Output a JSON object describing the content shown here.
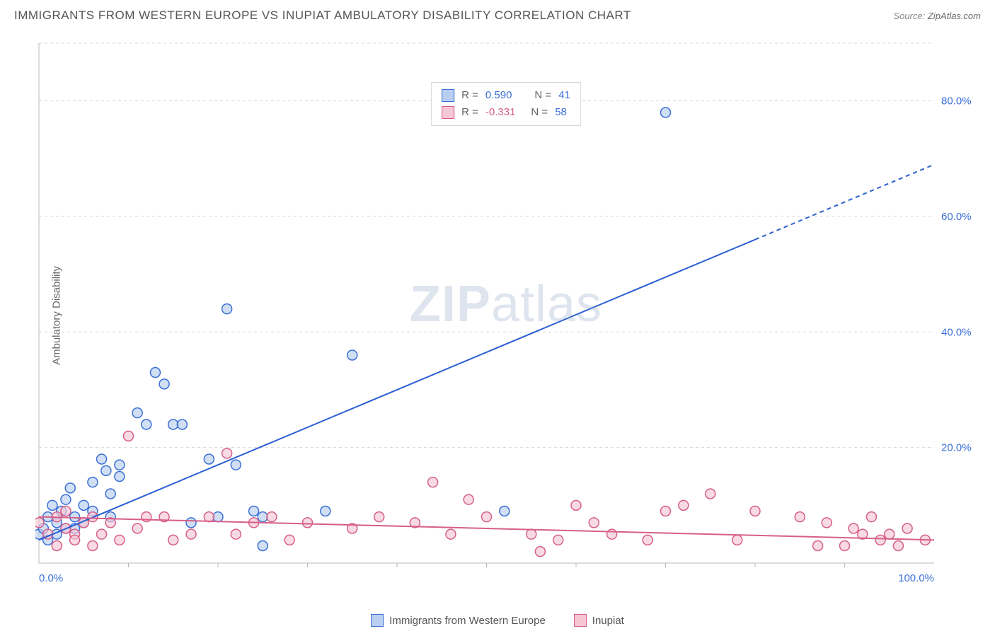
{
  "header": {
    "title": "IMMIGRANTS FROM WESTERN EUROPE VS INUPIAT AMBULATORY DISABILITY CORRELATION CHART",
    "source_label": "Source:",
    "source_name": "ZipAtlas.com"
  },
  "y_axis_label": "Ambulatory Disability",
  "watermark": {
    "zip": "ZIP",
    "atlas": "atlas"
  },
  "legend_top": {
    "series": [
      {
        "swatch_fill": "#b9cef0",
        "swatch_stroke": "#3b6fd6",
        "r_label": "R =",
        "r_value": "0.590",
        "r_color": "#3b6fd6",
        "n_label": "N =",
        "n_value": "41",
        "n_color": "#3b6fd6"
      },
      {
        "swatch_fill": "#f5c6d4",
        "swatch_stroke": "#d65f88",
        "r_label": "R =",
        "r_value": "-0.331",
        "r_color": "#d65f88",
        "n_label": "N =",
        "n_value": "58",
        "n_color": "#3b6fd6"
      }
    ]
  },
  "legend_bottom": {
    "items": [
      {
        "swatch_fill": "#b9cef0",
        "swatch_stroke": "#3b6fd6",
        "label": "Immigrants from Western Europe"
      },
      {
        "swatch_fill": "#f5c6d4",
        "swatch_stroke": "#d65f88",
        "label": "Inupiat"
      }
    ]
  },
  "chart": {
    "type": "scatter",
    "background_color": "#ffffff",
    "grid_color": "#d8d8d8",
    "grid_dash": "4,4",
    "axis_color": "#b8b8b8",
    "xlim": [
      0,
      100
    ],
    "ylim": [
      0,
      90
    ],
    "x_tick_major": [
      0,
      100
    ],
    "x_tick_labels": [
      "0.0%",
      "100.0%"
    ],
    "x_tick_minor_step": 10,
    "y_tick_major": [
      20,
      40,
      60,
      80
    ],
    "y_tick_labels": [
      "20.0%",
      "40.0%",
      "60.0%",
      "80.0%"
    ],
    "tick_label_color": "#3b6fd6",
    "tick_label_fontsize": 15,
    "marker_radius": 7,
    "marker_stroke_width": 1.5,
    "series": [
      {
        "name": "Immigrants from Western Europe",
        "point_fill": "#b9cef0",
        "point_stroke": "#3b6fd6",
        "point_opacity": 0.65,
        "line_color": "#2a5fd0",
        "line_width": 2,
        "trend": {
          "x1": 0,
          "y1": 4,
          "x2": 80,
          "y2": 56,
          "dash_from_x": 80,
          "x3": 100,
          "y3": 69
        },
        "points": [
          [
            0,
            5
          ],
          [
            0.5,
            6
          ],
          [
            1,
            4
          ],
          [
            1,
            8
          ],
          [
            1.5,
            10
          ],
          [
            2,
            7
          ],
          [
            2,
            5
          ],
          [
            2.5,
            9
          ],
          [
            3,
            6
          ],
          [
            3,
            11
          ],
          [
            3.5,
            13
          ],
          [
            4,
            8
          ],
          [
            4,
            6
          ],
          [
            5,
            7
          ],
          [
            5,
            10
          ],
          [
            6,
            14
          ],
          [
            6,
            9
          ],
          [
            7,
            18
          ],
          [
            7.5,
            16
          ],
          [
            8,
            12
          ],
          [
            8,
            8
          ],
          [
            9,
            17
          ],
          [
            9,
            15
          ],
          [
            11,
            26
          ],
          [
            12,
            24
          ],
          [
            13,
            33
          ],
          [
            14,
            31
          ],
          [
            15,
            24
          ],
          [
            16,
            24
          ],
          [
            17,
            7
          ],
          [
            19,
            18
          ],
          [
            20,
            8
          ],
          [
            21,
            44
          ],
          [
            22,
            17
          ],
          [
            24,
            9
          ],
          [
            25,
            3
          ],
          [
            25,
            8
          ],
          [
            32,
            9
          ],
          [
            35,
            36
          ],
          [
            52,
            9
          ],
          [
            70,
            78
          ]
        ]
      },
      {
        "name": "Inupiat",
        "point_fill": "#f5c6d4",
        "point_stroke": "#d65f88",
        "point_opacity": 0.65,
        "line_color": "#d65f88",
        "line_width": 2,
        "trend": {
          "x1": 0,
          "y1": 8,
          "x2": 100,
          "y2": 4
        },
        "points": [
          [
            0,
            7
          ],
          [
            1,
            5
          ],
          [
            2,
            8
          ],
          [
            2,
            3
          ],
          [
            3,
            6
          ],
          [
            3,
            9
          ],
          [
            4,
            5
          ],
          [
            4,
            4
          ],
          [
            5,
            7
          ],
          [
            6,
            3
          ],
          [
            6,
            8
          ],
          [
            7,
            5
          ],
          [
            8,
            7
          ],
          [
            9,
            4
          ],
          [
            10,
            22
          ],
          [
            11,
            6
          ],
          [
            12,
            8
          ],
          [
            14,
            8
          ],
          [
            15,
            4
          ],
          [
            17,
            5
          ],
          [
            19,
            8
          ],
          [
            21,
            19
          ],
          [
            22,
            5
          ],
          [
            24,
            7
          ],
          [
            26,
            8
          ],
          [
            28,
            4
          ],
          [
            30,
            7
          ],
          [
            35,
            6
          ],
          [
            38,
            8
          ],
          [
            42,
            7
          ],
          [
            44,
            14
          ],
          [
            46,
            5
          ],
          [
            48,
            11
          ],
          [
            50,
            8
          ],
          [
            55,
            5
          ],
          [
            56,
            2
          ],
          [
            58,
            4
          ],
          [
            60,
            10
          ],
          [
            62,
            7
          ],
          [
            64,
            5
          ],
          [
            68,
            4
          ],
          [
            70,
            9
          ],
          [
            72,
            10
          ],
          [
            75,
            12
          ],
          [
            78,
            4
          ],
          [
            80,
            9
          ],
          [
            85,
            8
          ],
          [
            87,
            3
          ],
          [
            88,
            7
          ],
          [
            90,
            3
          ],
          [
            91,
            6
          ],
          [
            92,
            5
          ],
          [
            93,
            8
          ],
          [
            94,
            4
          ],
          [
            95,
            5
          ],
          [
            96,
            3
          ],
          [
            97,
            6
          ],
          [
            99,
            4
          ]
        ]
      }
    ]
  }
}
